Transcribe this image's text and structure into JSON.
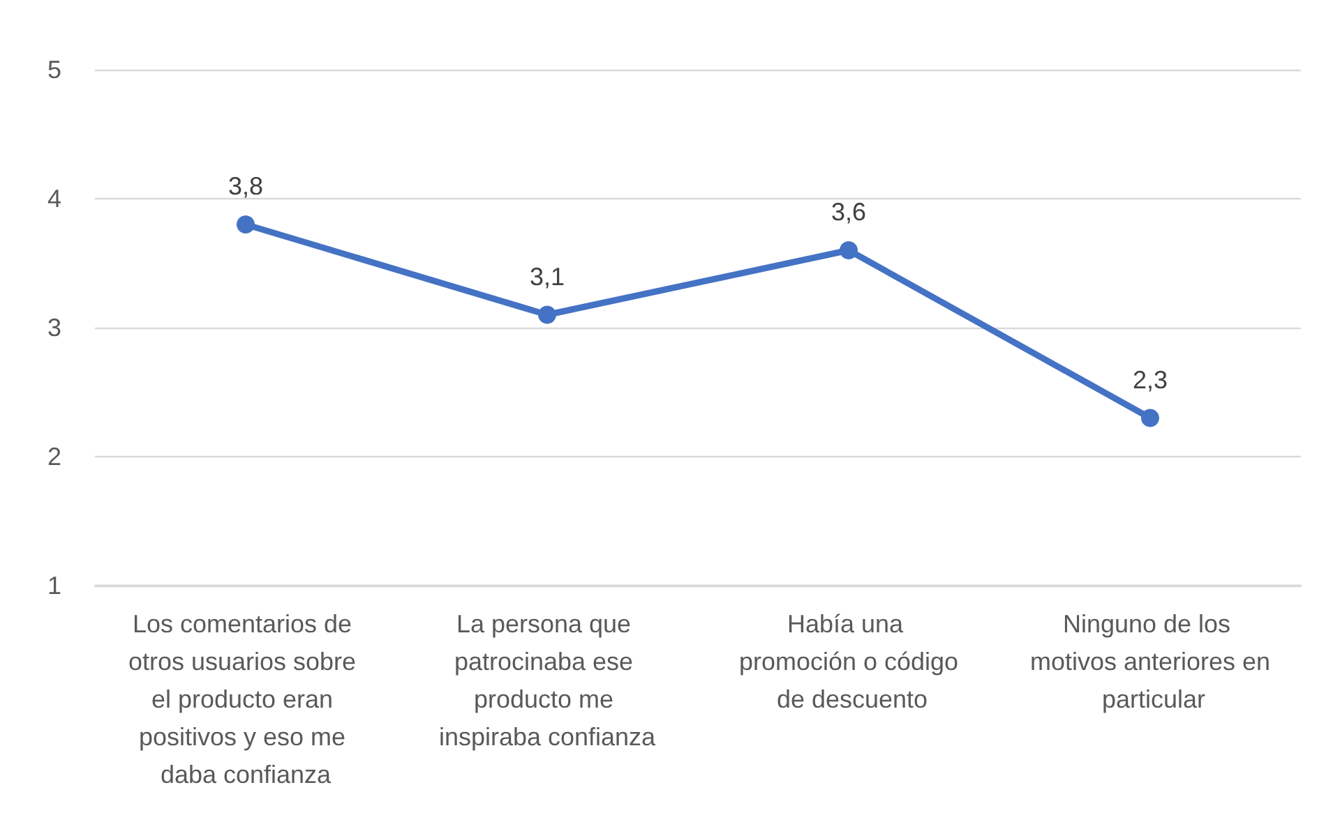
{
  "chart_data": {
    "type": "line",
    "categories": [
      "Los comentarios de otros usuarios sobre el producto eran positivos y eso me daba confianza",
      "La persona que patrocinaba ese producto me inspiraba confianza",
      "Había una promoción o código de descuento",
      "Ninguno de los motivos anteriores en particular"
    ],
    "series": [
      {
        "color": "#4472c4",
        "values": [
          3.8,
          3.1,
          3.6,
          2.3
        ],
        "value_labels": [
          "3,8",
          "3,1",
          "3,6",
          "2,3"
        ]
      }
    ],
    "ylim": [
      1,
      5
    ],
    "yticks": [
      1,
      2,
      3,
      4,
      5
    ],
    "grid": "y",
    "marker": "circle",
    "line_style": "solid"
  }
}
